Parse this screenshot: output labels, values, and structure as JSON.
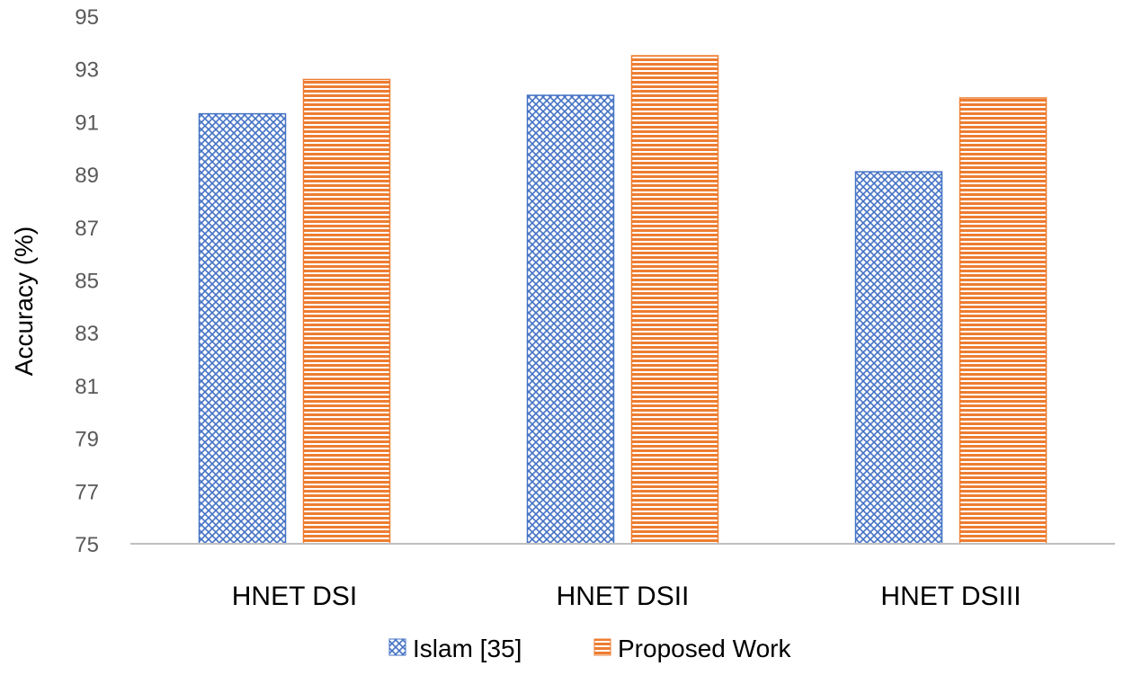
{
  "chart_data": {
    "type": "bar",
    "title": "",
    "xlabel": "",
    "ylabel": "Accuracy (%)",
    "categories": [
      "HNET DSI",
      "HNET DSII",
      "HNET DSIII"
    ],
    "series": [
      {
        "name": "Islam [35]",
        "values": [
          91.3,
          92.0,
          89.1
        ],
        "color": "#4472C4",
        "pattern": "crosshatch"
      },
      {
        "name": "Proposed Work",
        "values": [
          92.6,
          93.5,
          91.9
        ],
        "color": "#ED7D31",
        "pattern": "horizontal-lines"
      }
    ],
    "ylim": [
      75,
      95
    ],
    "yticks": [
      "75",
      "77",
      "79",
      "81",
      "83",
      "85",
      "87",
      "89",
      "91",
      "93",
      "95"
    ],
    "grid": false,
    "legend_position": "bottom"
  }
}
